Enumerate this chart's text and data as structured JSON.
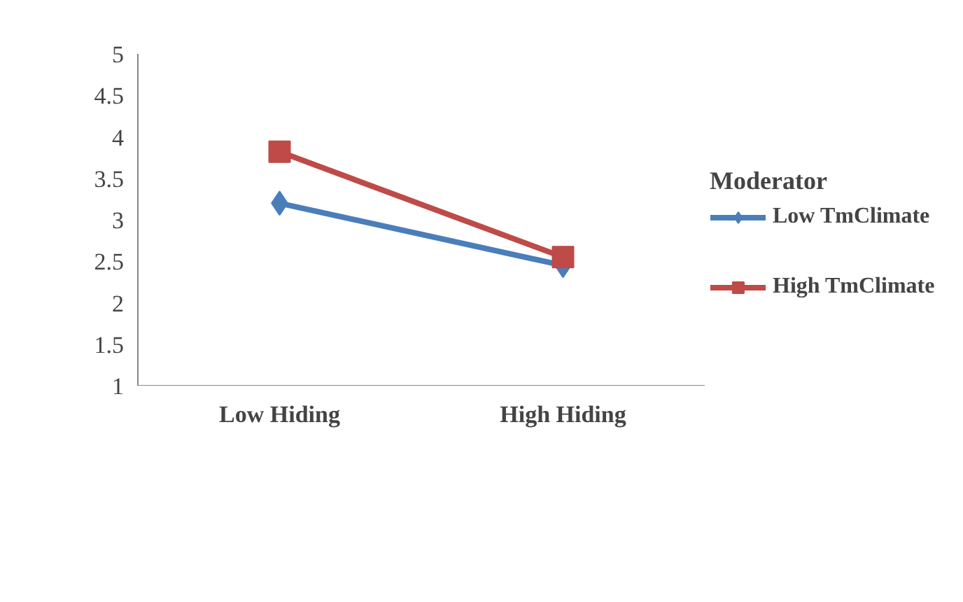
{
  "chart_data": {
    "type": "line",
    "categories": [
      "Low Hiding",
      "High Hiding"
    ],
    "legend_title": "Moderator",
    "legend": "right",
    "grid": false,
    "ylim": [
      1,
      5
    ],
    "yticks": [
      1,
      1.5,
      2,
      2.5,
      3,
      3.5,
      4,
      4.5,
      5
    ],
    "series": [
      {
        "name": "Low TmClimate",
        "color": "#4a7ebb",
        "marker": "diamond",
        "values": [
          3.2,
          2.45
        ]
      },
      {
        "name": "High TmClimate",
        "color": "#be4b48",
        "marker": "square",
        "values": [
          3.82,
          2.55
        ]
      }
    ]
  }
}
